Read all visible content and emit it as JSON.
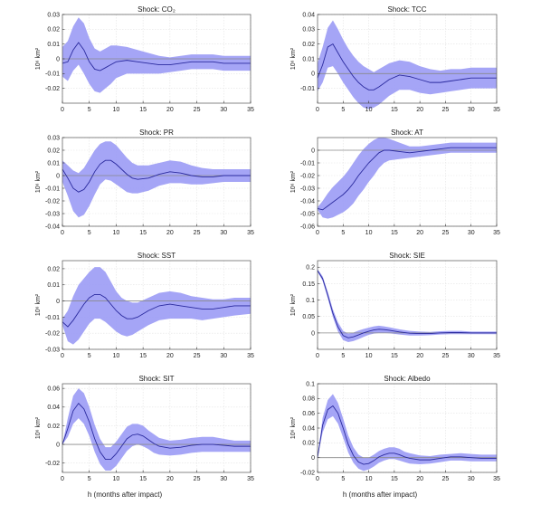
{
  "colors": {
    "band": "#9b9bf5",
    "line": "#2a2a9e",
    "zero": "#8a8a8a",
    "grid": "#e3e3e3"
  },
  "figure": {
    "xlabel": "h (months after impact)"
  },
  "chart_data": [
    {
      "type": "line",
      "title": "Shock: CO₂",
      "ylabel": "10⁶ km²",
      "xlim": [
        0,
        35
      ],
      "ylim": [
        -0.03,
        0.03
      ],
      "xticks": [
        0,
        5,
        10,
        15,
        20,
        25,
        30,
        35
      ],
      "yticks": [
        -0.02,
        -0.01,
        0,
        0.01,
        0.02,
        0.03
      ],
      "x": [
        0,
        1,
        2,
        3,
        4,
        5,
        6,
        7,
        8,
        9,
        10,
        12,
        14,
        16,
        18,
        20,
        22,
        24,
        26,
        28,
        30,
        32,
        35
      ],
      "y": [
        -0.003,
        -0.002,
        0.006,
        0.011,
        0.006,
        -0.002,
        -0.007,
        -0.008,
        -0.006,
        -0.004,
        -0.002,
        -0.001,
        -0.002,
        -0.003,
        -0.004,
        -0.004,
        -0.003,
        -0.002,
        -0.002,
        -0.002,
        -0.003,
        -0.003,
        -0.003
      ],
      "lower": [
        -0.012,
        -0.015,
        -0.008,
        -0.004,
        -0.01,
        -0.017,
        -0.022,
        -0.023,
        -0.02,
        -0.017,
        -0.013,
        -0.01,
        -0.01,
        -0.01,
        -0.01,
        -0.009,
        -0.008,
        -0.007,
        -0.007,
        -0.007,
        -0.008,
        -0.008,
        -0.008
      ],
      "upper": [
        0.008,
        0.012,
        0.022,
        0.028,
        0.024,
        0.014,
        0.007,
        0.005,
        0.007,
        0.009,
        0.009,
        0.008,
        0.006,
        0.004,
        0.002,
        0.001,
        0.002,
        0.003,
        0.003,
        0.003,
        0.002,
        0.002,
        0.002
      ]
    },
    {
      "type": "line",
      "title": "Shock: TCC",
      "ylabel": "10⁶ km²",
      "xlim": [
        0,
        35
      ],
      "ylim": [
        -0.02,
        0.04
      ],
      "xticks": [
        0,
        5,
        10,
        15,
        20,
        25,
        30,
        35
      ],
      "yticks": [
        -0.01,
        0,
        0.01,
        0.02,
        0.03,
        0.04
      ],
      "x": [
        0,
        1,
        2,
        3,
        4,
        5,
        6,
        7,
        8,
        9,
        10,
        11,
        12,
        14,
        16,
        18,
        20,
        22,
        24,
        26,
        28,
        30,
        32,
        35
      ],
      "y": [
        -0.003,
        0.006,
        0.018,
        0.02,
        0.014,
        0.008,
        0.003,
        -0.002,
        -0.006,
        -0.009,
        -0.011,
        -0.011,
        -0.009,
        -0.004,
        -0.001,
        -0.002,
        -0.004,
        -0.006,
        -0.006,
        -0.005,
        -0.004,
        -0.003,
        -0.003,
        -0.003
      ],
      "lower": [
        -0.012,
        -0.006,
        0.004,
        0.005,
        0.0,
        -0.006,
        -0.011,
        -0.016,
        -0.02,
        -0.023,
        -0.024,
        -0.023,
        -0.021,
        -0.015,
        -0.011,
        -0.011,
        -0.013,
        -0.014,
        -0.013,
        -0.012,
        -0.011,
        -0.01,
        -0.01,
        -0.01
      ],
      "upper": [
        0.007,
        0.018,
        0.031,
        0.036,
        0.03,
        0.023,
        0.017,
        0.012,
        0.008,
        0.005,
        0.003,
        0.001,
        0.003,
        0.007,
        0.009,
        0.008,
        0.005,
        0.003,
        0.002,
        0.003,
        0.003,
        0.004,
        0.004,
        0.004
      ]
    },
    {
      "type": "line",
      "title": "Shock: PR",
      "ylabel": "10⁶ km²",
      "xlim": [
        0,
        35
      ],
      "ylim": [
        -0.04,
        0.03
      ],
      "xticks": [
        0,
        5,
        10,
        15,
        20,
        25,
        30,
        35
      ],
      "yticks": [
        -0.04,
        -0.03,
        -0.02,
        -0.01,
        0,
        0.01,
        0.02,
        0.03
      ],
      "x": [
        0,
        1,
        2,
        3,
        4,
        5,
        6,
        7,
        8,
        9,
        10,
        11,
        12,
        13,
        14,
        16,
        18,
        20,
        22,
        24,
        26,
        28,
        30,
        32,
        35
      ],
      "y": [
        0.005,
        -0.002,
        -0.01,
        -0.013,
        -0.011,
        -0.005,
        0.003,
        0.009,
        0.012,
        0.012,
        0.009,
        0.005,
        0.001,
        -0.002,
        -0.003,
        -0.002,
        0.001,
        0.003,
        0.002,
        0.0,
        -0.001,
        -0.001,
        0.0,
        0.0,
        0.0
      ],
      "lower": [
        -0.005,
        -0.016,
        -0.028,
        -0.033,
        -0.031,
        -0.024,
        -0.015,
        -0.007,
        -0.003,
        -0.004,
        -0.007,
        -0.01,
        -0.013,
        -0.014,
        -0.014,
        -0.012,
        -0.008,
        -0.006,
        -0.006,
        -0.007,
        -0.007,
        -0.006,
        -0.005,
        -0.005,
        -0.005
      ],
      "upper": [
        0.012,
        0.008,
        0.004,
        0.002,
        0.006,
        0.013,
        0.02,
        0.025,
        0.027,
        0.027,
        0.024,
        0.019,
        0.014,
        0.01,
        0.008,
        0.008,
        0.01,
        0.012,
        0.011,
        0.008,
        0.006,
        0.005,
        0.005,
        0.005,
        0.005
      ]
    },
    {
      "type": "line",
      "title": "Shock: AT",
      "ylabel": "10⁶ km²",
      "xlim": [
        0,
        35
      ],
      "ylim": [
        -0.06,
        0.01
      ],
      "xticks": [
        0,
        5,
        10,
        15,
        20,
        25,
        30,
        35
      ],
      "yticks": [
        -0.06,
        -0.05,
        -0.04,
        -0.03,
        -0.02,
        -0.01,
        0
      ],
      "x": [
        0,
        1,
        2,
        3,
        4,
        5,
        6,
        7,
        8,
        9,
        10,
        11,
        12,
        13,
        14,
        16,
        18,
        20,
        22,
        24,
        26,
        28,
        30,
        32,
        35
      ],
      "y": [
        -0.046,
        -0.047,
        -0.044,
        -0.041,
        -0.038,
        -0.035,
        -0.031,
        -0.026,
        -0.02,
        -0.015,
        -0.01,
        -0.006,
        -0.002,
        0.0,
        0.0,
        -0.001,
        -0.002,
        -0.001,
        0.0,
        0.001,
        0.002,
        0.002,
        0.002,
        0.002,
        0.002
      ],
      "lower": [
        -0.047,
        -0.053,
        -0.054,
        -0.053,
        -0.051,
        -0.049,
        -0.046,
        -0.042,
        -0.036,
        -0.031,
        -0.025,
        -0.02,
        -0.014,
        -0.01,
        -0.008,
        -0.007,
        -0.006,
        -0.005,
        -0.004,
        -0.003,
        -0.002,
        -0.002,
        -0.002,
        -0.002,
        -0.002
      ],
      "upper": [
        -0.045,
        -0.04,
        -0.034,
        -0.029,
        -0.025,
        -0.021,
        -0.016,
        -0.01,
        -0.004,
        0.001,
        0.005,
        0.008,
        0.01,
        0.01,
        0.009,
        0.006,
        0.003,
        0.003,
        0.004,
        0.005,
        0.006,
        0.006,
        0.006,
        0.006,
        0.006
      ]
    },
    {
      "type": "line",
      "title": "Shock: SST",
      "ylabel": "10⁶ km²",
      "xlim": [
        0,
        35
      ],
      "ylim": [
        -0.03,
        0.025
      ],
      "xticks": [
        0,
        5,
        10,
        15,
        20,
        25,
        30,
        35
      ],
      "yticks": [
        -0.03,
        -0.02,
        -0.01,
        0,
        0.01,
        0.02
      ],
      "x": [
        0,
        1,
        2,
        3,
        4,
        5,
        6,
        7,
        8,
        9,
        10,
        11,
        12,
        13,
        14,
        16,
        18,
        20,
        22,
        24,
        26,
        28,
        30,
        32,
        35
      ],
      "y": [
        -0.013,
        -0.016,
        -0.012,
        -0.007,
        -0.002,
        0.002,
        0.004,
        0.004,
        0.002,
        -0.002,
        -0.006,
        -0.009,
        -0.011,
        -0.011,
        -0.01,
        -0.006,
        -0.003,
        -0.002,
        -0.003,
        -0.004,
        -0.005,
        -0.005,
        -0.004,
        -0.003,
        -0.003
      ],
      "lower": [
        -0.015,
        -0.025,
        -0.027,
        -0.024,
        -0.019,
        -0.014,
        -0.011,
        -0.011,
        -0.013,
        -0.016,
        -0.019,
        -0.021,
        -0.022,
        -0.021,
        -0.019,
        -0.015,
        -0.012,
        -0.011,
        -0.011,
        -0.011,
        -0.012,
        -0.011,
        -0.01,
        -0.009,
        -0.008
      ],
      "upper": [
        -0.011,
        -0.006,
        0.003,
        0.01,
        0.014,
        0.018,
        0.021,
        0.021,
        0.018,
        0.012,
        0.006,
        0.002,
        0.0,
        -0.001,
        -0.001,
        0.002,
        0.005,
        0.006,
        0.005,
        0.003,
        0.002,
        0.001,
        0.001,
        0.002,
        0.002
      ]
    },
    {
      "type": "line",
      "title": "Shock: SIE",
      "ylabel": "10⁶ km²",
      "xlim": [
        0,
        35
      ],
      "ylim": [
        -0.05,
        0.22
      ],
      "xticks": [
        0,
        5,
        10,
        15,
        20,
        25,
        30,
        35
      ],
      "yticks": [
        0,
        0.05,
        0.1,
        0.15,
        0.2
      ],
      "x": [
        0,
        1,
        2,
        3,
        4,
        5,
        6,
        7,
        8,
        9,
        10,
        11,
        12,
        13,
        14,
        16,
        18,
        20,
        22,
        24,
        26,
        28,
        30,
        32,
        35
      ],
      "y": [
        0.19,
        0.165,
        0.115,
        0.06,
        0.018,
        -0.008,
        -0.015,
        -0.012,
        -0.006,
        0.0,
        0.005,
        0.009,
        0.011,
        0.01,
        0.008,
        0.003,
        -0.001,
        -0.002,
        -0.002,
        0.0,
        0.001,
        0.001,
        0.0,
        0.0,
        0.0
      ],
      "lower": [
        0.186,
        0.158,
        0.105,
        0.048,
        0.004,
        -0.022,
        -0.028,
        -0.025,
        -0.019,
        -0.012,
        -0.006,
        -0.002,
        0.0,
        0.0,
        -0.001,
        -0.005,
        -0.008,
        -0.008,
        -0.007,
        -0.005,
        -0.004,
        -0.004,
        -0.004,
        -0.004,
        -0.004
      ],
      "upper": [
        0.194,
        0.172,
        0.125,
        0.072,
        0.032,
        0.006,
        -0.002,
        0.001,
        0.007,
        0.012,
        0.016,
        0.02,
        0.022,
        0.02,
        0.017,
        0.011,
        0.006,
        0.004,
        0.003,
        0.005,
        0.006,
        0.006,
        0.004,
        0.004,
        0.004
      ]
    },
    {
      "type": "line",
      "title": "Shock: SIT",
      "ylabel": "10⁶ km²",
      "xlim": [
        0,
        35
      ],
      "ylim": [
        -0.03,
        0.065
      ],
      "xticks": [
        0,
        5,
        10,
        15,
        20,
        25,
        30,
        35
      ],
      "yticks": [
        -0.02,
        0,
        0.02,
        0.04,
        0.06
      ],
      "x": [
        0,
        1,
        2,
        3,
        4,
        5,
        6,
        7,
        8,
        9,
        10,
        11,
        12,
        13,
        14,
        15,
        16,
        17,
        18,
        20,
        22,
        24,
        26,
        28,
        30,
        32,
        35
      ],
      "y": [
        0.0,
        0.017,
        0.036,
        0.044,
        0.038,
        0.024,
        0.006,
        -0.008,
        -0.016,
        -0.016,
        -0.01,
        -0.002,
        0.006,
        0.01,
        0.011,
        0.009,
        0.005,
        0.001,
        -0.002,
        -0.004,
        -0.003,
        -0.001,
        0.0,
        0.0,
        -0.001,
        -0.002,
        -0.002
      ],
      "lower": [
        0.0,
        0.008,
        0.022,
        0.028,
        0.022,
        0.009,
        -0.008,
        -0.021,
        -0.028,
        -0.028,
        -0.023,
        -0.015,
        -0.007,
        -0.002,
        0.0,
        -0.002,
        -0.005,
        -0.009,
        -0.011,
        -0.012,
        -0.011,
        -0.009,
        -0.008,
        -0.008,
        -0.008,
        -0.008,
        -0.008
      ],
      "upper": [
        0.0,
        0.028,
        0.052,
        0.06,
        0.055,
        0.04,
        0.021,
        0.006,
        -0.003,
        -0.003,
        0.003,
        0.011,
        0.019,
        0.022,
        0.022,
        0.02,
        0.015,
        0.011,
        0.007,
        0.004,
        0.005,
        0.007,
        0.008,
        0.008,
        0.006,
        0.004,
        0.004
      ]
    },
    {
      "type": "line",
      "title": "Shock: Albedo",
      "ylabel": "10⁶ km²",
      "xlim": [
        0,
        35
      ],
      "ylim": [
        -0.02,
        0.1
      ],
      "xticks": [
        0,
        5,
        10,
        15,
        20,
        25,
        30,
        35
      ],
      "yticks": [
        -0.02,
        0,
        0.02,
        0.04,
        0.06,
        0.08,
        0.1
      ],
      "x": [
        0,
        1,
        2,
        3,
        4,
        5,
        6,
        7,
        8,
        9,
        10,
        11,
        12,
        13,
        14,
        15,
        16,
        17,
        18,
        20,
        22,
        24,
        26,
        28,
        30,
        32,
        35
      ],
      "y": [
        0.0,
        0.044,
        0.065,
        0.07,
        0.06,
        0.04,
        0.018,
        0.003,
        -0.006,
        -0.009,
        -0.008,
        -0.004,
        0.001,
        0.004,
        0.006,
        0.006,
        0.004,
        0.001,
        -0.001,
        -0.003,
        -0.003,
        -0.001,
        0.001,
        0.001,
        0.0,
        -0.001,
        -0.001
      ],
      "lower": [
        0.0,
        0.034,
        0.052,
        0.056,
        0.046,
        0.027,
        0.007,
        -0.007,
        -0.015,
        -0.018,
        -0.016,
        -0.012,
        -0.007,
        -0.004,
        -0.002,
        -0.002,
        -0.004,
        -0.006,
        -0.008,
        -0.009,
        -0.008,
        -0.006,
        -0.004,
        -0.004,
        -0.005,
        -0.005,
        -0.005
      ],
      "upper": [
        0.0,
        0.054,
        0.078,
        0.086,
        0.074,
        0.053,
        0.03,
        0.014,
        0.004,
        0.0,
        0.0,
        0.004,
        0.009,
        0.012,
        0.014,
        0.014,
        0.012,
        0.008,
        0.006,
        0.003,
        0.002,
        0.004,
        0.005,
        0.006,
        0.005,
        0.004,
        0.004
      ]
    }
  ]
}
